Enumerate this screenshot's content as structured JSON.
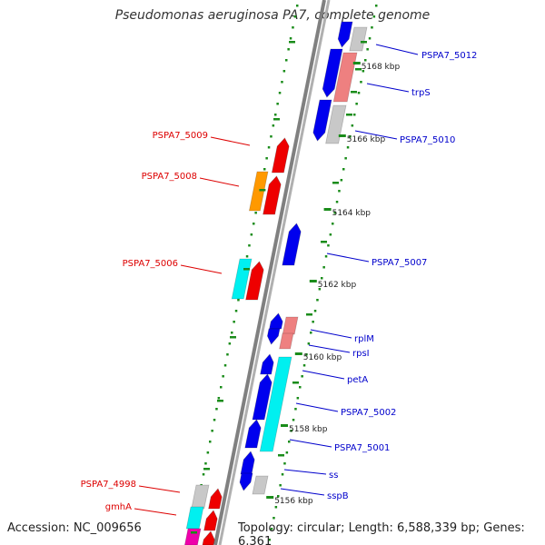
{
  "title": "Pseudomonas aeruginosa PA7, complete genome",
  "footer": {
    "accession": "Accession: NC_009656",
    "summary": "Topology: circular; Length: 6,588,339 bp; Genes: 6,361"
  },
  "colors": {
    "backbone": "#808080",
    "tick": "#1a8c1a",
    "left_label": "#dd0000",
    "right_label": "#0000cc"
  },
  "ticks": [
    "5168 kbp",
    "5166 kbp",
    "5164 kbp",
    "5162 kbp",
    "5160 kbp",
    "5158 kbp",
    "5156 kbp"
  ],
  "left_labels": [
    "PSPA7_5009",
    "PSPA7_5008",
    "PSPA7_5006",
    "PSPA7_4998",
    "gmhA"
  ],
  "right_labels": [
    "PSPA7_5012",
    "trpS",
    "PSPA7_5010",
    "PSPA7_5007",
    "rplM",
    "rpsI",
    "petA",
    "PSPA7_5002",
    "PSPA7_5001",
    "ss",
    "sspB"
  ]
}
